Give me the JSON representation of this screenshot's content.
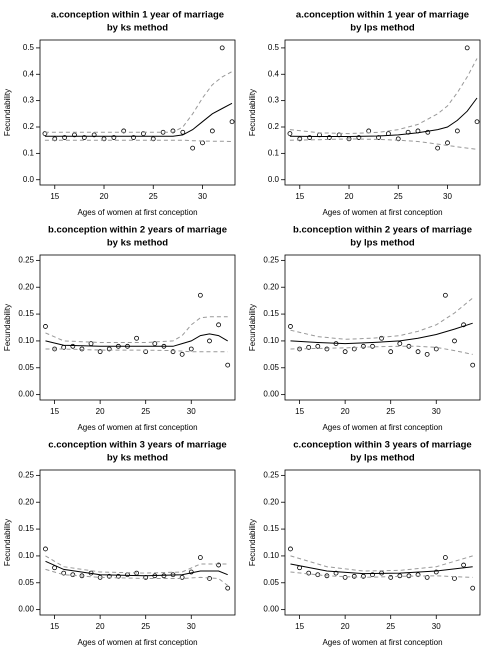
{
  "chart_data": [
    {
      "type": "scatter",
      "title": "a.conception within 1 year of marriage",
      "subtitle": "by ks method",
      "xlabel": "Ages of women at first conception",
      "ylabel": "Fecundability",
      "xlim": [
        13.5,
        33.3
      ],
      "xticks": [
        15,
        20,
        25,
        30
      ],
      "ylim": [
        -0.02,
        0.53
      ],
      "yticks": [
        {
          "value": 0,
          "label": "0.0"
        },
        0.1,
        0.2,
        0.3,
        0.4,
        0.5
      ],
      "x": [
        14,
        15,
        16,
        17,
        18,
        19,
        20,
        21,
        22,
        23,
        24,
        25,
        26,
        27,
        28,
        29,
        30,
        31,
        32,
        33
      ],
      "values": [
        0.175,
        0.155,
        0.16,
        0.17,
        0.16,
        0.17,
        0.155,
        0.16,
        0.185,
        0.16,
        0.175,
        0.155,
        0.18,
        0.185,
        0.18,
        0.12,
        0.14,
        0.185,
        0.5,
        0.22
      ],
      "curves": [
        {
          "style": "solid",
          "color": "#000000",
          "x": [
            14,
            20,
            25,
            27,
            28,
            29,
            30,
            31,
            32,
            33
          ],
          "values": [
            0.165,
            0.165,
            0.165,
            0.165,
            0.17,
            0.19,
            0.22,
            0.25,
            0.27,
            0.29
          ]
        },
        {
          "style": "dashed",
          "color": "#999999",
          "x": [
            14,
            20,
            25,
            27,
            28,
            29,
            30,
            31,
            32,
            33
          ],
          "values": [
            0.18,
            0.18,
            0.18,
            0.18,
            0.2,
            0.25,
            0.31,
            0.36,
            0.39,
            0.41
          ]
        },
        {
          "style": "dashed",
          "color": "#999999",
          "x": [
            14,
            20,
            25,
            27,
            28,
            29,
            30,
            31,
            32,
            33
          ],
          "values": [
            0.15,
            0.15,
            0.15,
            0.15,
            0.15,
            0.148,
            0.147,
            0.146,
            0.146,
            0.145
          ]
        }
      ]
    },
    {
      "type": "scatter",
      "title": "a.conception within 1 year of marriage",
      "subtitle": "by lps method",
      "xlabel": "Ages of women at first conception",
      "ylabel": "Fecundability",
      "xlim": [
        13.5,
        33.3
      ],
      "xticks": [
        15,
        20,
        25,
        30
      ],
      "ylim": [
        -0.02,
        0.53
      ],
      "yticks": [
        {
          "value": 0,
          "label": "0.0"
        },
        0.1,
        0.2,
        0.3,
        0.4,
        0.5
      ],
      "x": [
        14,
        15,
        16,
        17,
        18,
        19,
        20,
        21,
        22,
        23,
        24,
        25,
        26,
        27,
        28,
        29,
        30,
        31,
        32,
        33
      ],
      "values": [
        0.175,
        0.155,
        0.16,
        0.17,
        0.16,
        0.17,
        0.155,
        0.16,
        0.185,
        0.16,
        0.175,
        0.155,
        0.18,
        0.185,
        0.18,
        0.12,
        0.14,
        0.185,
        0.5,
        0.22
      ],
      "curves": [
        {
          "style": "solid",
          "color": "#000000",
          "x": [
            14,
            17,
            20,
            23,
            25,
            27,
            29,
            30,
            31,
            32,
            33
          ],
          "values": [
            0.165,
            0.164,
            0.164,
            0.166,
            0.17,
            0.178,
            0.19,
            0.2,
            0.225,
            0.26,
            0.31
          ]
        },
        {
          "style": "dashed",
          "color": "#999999",
          "x": [
            14,
            17,
            20,
            23,
            25,
            27,
            29,
            30,
            31,
            32,
            33
          ],
          "values": [
            0.19,
            0.178,
            0.175,
            0.18,
            0.19,
            0.21,
            0.25,
            0.28,
            0.33,
            0.39,
            0.46
          ]
        },
        {
          "style": "dashed",
          "color": "#999999",
          "x": [
            14,
            17,
            20,
            23,
            25,
            27,
            29,
            30,
            31,
            32,
            33
          ],
          "values": [
            0.15,
            0.152,
            0.155,
            0.153,
            0.15,
            0.145,
            0.135,
            0.13,
            0.125,
            0.12,
            0.115
          ]
        }
      ]
    },
    {
      "type": "scatter",
      "title": "b.conception within 2 years of marriage",
      "subtitle": "by ks method",
      "xlabel": "Ages of women at first conception",
      "ylabel": "Fecundability",
      "xlim": [
        13.4,
        34.8
      ],
      "xticks": [
        15,
        20,
        25,
        30
      ],
      "ylim": [
        -0.01,
        0.26
      ],
      "yticks": [
        {
          "value": 0,
          "label": "0.00"
        },
        {
          "value": 0.05,
          "label": "0.05"
        },
        {
          "value": 0.1,
          "label": "0.10"
        },
        {
          "value": 0.15,
          "label": "0.15"
        },
        {
          "value": 0.2,
          "label": "0.20"
        },
        {
          "value": 0.25,
          "label": "0.25"
        }
      ],
      "x": [
        14,
        15,
        16,
        17,
        18,
        19,
        20,
        21,
        22,
        23,
        24,
        25,
        26,
        27,
        28,
        29,
        30,
        31,
        32,
        33,
        34
      ],
      "values": [
        0.127,
        0.085,
        0.088,
        0.09,
        0.085,
        0.095,
        0.08,
        0.085,
        0.09,
        0.09,
        0.105,
        0.08,
        0.095,
        0.09,
        0.08,
        0.075,
        0.085,
        0.185,
        0.1,
        0.13,
        0.055
      ],
      "curves": [
        {
          "style": "solid",
          "color": "#000000",
          "x": [
            14,
            16,
            20,
            25,
            28,
            29,
            30,
            31,
            32,
            33,
            34
          ],
          "values": [
            0.1,
            0.092,
            0.09,
            0.09,
            0.09,
            0.095,
            0.1,
            0.11,
            0.113,
            0.11,
            0.1
          ]
        },
        {
          "style": "dashed",
          "color": "#999999",
          "x": [
            14,
            16,
            20,
            25,
            28,
            29,
            30,
            31,
            32,
            33,
            34
          ],
          "values": [
            0.115,
            0.1,
            0.097,
            0.097,
            0.1,
            0.11,
            0.13,
            0.143,
            0.145,
            0.145,
            0.145
          ]
        },
        {
          "style": "dashed",
          "color": "#999999",
          "x": [
            14,
            16,
            20,
            25,
            28,
            29,
            30,
            31,
            32,
            33,
            34
          ],
          "values": [
            0.085,
            0.085,
            0.083,
            0.083,
            0.082,
            0.081,
            0.08,
            0.08,
            0.08,
            0.08,
            0.08
          ]
        }
      ]
    },
    {
      "type": "scatter",
      "title": "b.conception within 2 years of marriage",
      "subtitle": "by lps method",
      "xlabel": "Ages of women at first conception",
      "ylabel": "Fecundability",
      "xlim": [
        13.4,
        34.8
      ],
      "xticks": [
        15,
        20,
        25,
        30
      ],
      "ylim": [
        -0.01,
        0.26
      ],
      "yticks": [
        {
          "value": 0,
          "label": "0.00"
        },
        {
          "value": 0.05,
          "label": "0.05"
        },
        {
          "value": 0.1,
          "label": "0.10"
        },
        {
          "value": 0.15,
          "label": "0.15"
        },
        {
          "value": 0.2,
          "label": "0.20"
        },
        {
          "value": 0.25,
          "label": "0.25"
        }
      ],
      "x": [
        14,
        15,
        16,
        17,
        18,
        19,
        20,
        21,
        22,
        23,
        24,
        25,
        26,
        27,
        28,
        29,
        30,
        31,
        32,
        33,
        34
      ],
      "values": [
        0.127,
        0.085,
        0.088,
        0.09,
        0.085,
        0.095,
        0.08,
        0.085,
        0.09,
        0.09,
        0.105,
        0.08,
        0.095,
        0.09,
        0.08,
        0.075,
        0.085,
        0.185,
        0.1,
        0.13,
        0.055
      ],
      "curves": [
        {
          "style": "solid",
          "color": "#000000",
          "x": [
            14,
            17,
            20,
            23,
            26,
            28,
            30,
            32,
            34
          ],
          "values": [
            0.1,
            0.097,
            0.095,
            0.097,
            0.1,
            0.105,
            0.112,
            0.122,
            0.133
          ]
        },
        {
          "style": "dashed",
          "color": "#999999",
          "x": [
            14,
            17,
            20,
            23,
            26,
            28,
            30,
            32,
            34
          ],
          "values": [
            0.12,
            0.108,
            0.103,
            0.105,
            0.11,
            0.118,
            0.13,
            0.152,
            0.18
          ]
        },
        {
          "style": "dashed",
          "color": "#999999",
          "x": [
            14,
            17,
            20,
            23,
            26,
            28,
            30,
            32,
            34
          ],
          "values": [
            0.085,
            0.086,
            0.087,
            0.089,
            0.09,
            0.09,
            0.088,
            0.082,
            0.075
          ]
        }
      ]
    },
    {
      "type": "scatter",
      "title": "c.conception within 3 years of marriage",
      "subtitle": "by ks method",
      "xlabel": "Ages of women at first conception",
      "ylabel": "Fecundability",
      "xlim": [
        13.4,
        34.8
      ],
      "xticks": [
        15,
        20,
        25,
        30
      ],
      "ylim": [
        -0.01,
        0.26
      ],
      "yticks": [
        {
          "value": 0,
          "label": "0.00"
        },
        {
          "value": 0.05,
          "label": "0.05"
        },
        {
          "value": 0.1,
          "label": "0.10"
        },
        {
          "value": 0.15,
          "label": "0.15"
        },
        {
          "value": 0.2,
          "label": "0.20"
        },
        {
          "value": 0.25,
          "label": "0.25"
        }
      ],
      "x": [
        14,
        15,
        16,
        17,
        18,
        19,
        20,
        21,
        22,
        23,
        24,
        25,
        26,
        27,
        28,
        29,
        30,
        31,
        32,
        33,
        34
      ],
      "values": [
        0.113,
        0.078,
        0.068,
        0.065,
        0.063,
        0.068,
        0.06,
        0.062,
        0.062,
        0.065,
        0.068,
        0.06,
        0.063,
        0.063,
        0.065,
        0.06,
        0.07,
        0.097,
        0.058,
        0.083,
        0.04
      ],
      "curves": [
        {
          "style": "solid",
          "color": "#000000",
          "x": [
            14,
            16,
            20,
            25,
            29,
            31,
            33,
            34
          ],
          "values": [
            0.09,
            0.075,
            0.065,
            0.063,
            0.065,
            0.072,
            0.072,
            0.065
          ]
        },
        {
          "style": "dashed",
          "color": "#999999",
          "x": [
            14,
            16,
            20,
            25,
            29,
            31,
            33,
            34
          ],
          "values": [
            0.1,
            0.08,
            0.07,
            0.068,
            0.07,
            0.085,
            0.085,
            0.085
          ]
        },
        {
          "style": "dashed",
          "color": "#999999",
          "x": [
            14,
            16,
            20,
            25,
            29,
            31,
            33,
            34
          ],
          "values": [
            0.075,
            0.065,
            0.06,
            0.058,
            0.058,
            0.06,
            0.058,
            0.045
          ]
        }
      ]
    },
    {
      "type": "scatter",
      "title": "c.conception within 3 years of marriage",
      "subtitle": "by lps method",
      "xlabel": "Ages of women at first conception",
      "ylabel": "Fecundability",
      "xlim": [
        13.4,
        34.8
      ],
      "xticks": [
        15,
        20,
        25,
        30
      ],
      "ylim": [
        -0.01,
        0.26
      ],
      "yticks": [
        {
          "value": 0,
          "label": "0.00"
        },
        {
          "value": 0.05,
          "label": "0.05"
        },
        {
          "value": 0.1,
          "label": "0.10"
        },
        {
          "value": 0.15,
          "label": "0.15"
        },
        {
          "value": 0.2,
          "label": "0.20"
        },
        {
          "value": 0.25,
          "label": "0.25"
        }
      ],
      "x": [
        14,
        15,
        16,
        17,
        18,
        19,
        20,
        21,
        22,
        23,
        24,
        25,
        26,
        27,
        28,
        29,
        30,
        31,
        32,
        33,
        34
      ],
      "values": [
        0.113,
        0.078,
        0.068,
        0.065,
        0.063,
        0.068,
        0.06,
        0.062,
        0.062,
        0.065,
        0.068,
        0.06,
        0.063,
        0.063,
        0.065,
        0.06,
        0.07,
        0.097,
        0.058,
        0.083,
        0.04
      ],
      "curves": [
        {
          "style": "solid",
          "color": "#000000",
          "x": [
            14,
            18,
            22,
            26,
            30,
            34
          ],
          "values": [
            0.085,
            0.072,
            0.067,
            0.068,
            0.072,
            0.08
          ]
        },
        {
          "style": "dashed",
          "color": "#999999",
          "x": [
            14,
            18,
            22,
            26,
            30,
            34
          ],
          "values": [
            0.1,
            0.08,
            0.072,
            0.073,
            0.08,
            0.1
          ]
        },
        {
          "style": "dashed",
          "color": "#999999",
          "x": [
            14,
            18,
            22,
            26,
            30,
            34
          ],
          "values": [
            0.07,
            0.063,
            0.06,
            0.062,
            0.063,
            0.06
          ]
        }
      ]
    }
  ]
}
